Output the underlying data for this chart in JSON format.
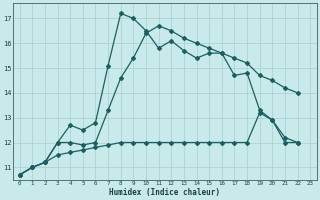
{
  "xlabel": "Humidex (Indice chaleur)",
  "bg_color": "#c8eaea",
  "grid_color": "#a8cece",
  "line_color": "#1a6060",
  "xlim": [
    -0.5,
    23.5
  ],
  "ylim": [
    10.5,
    17.6
  ],
  "yticks": [
    11,
    12,
    13,
    14,
    15,
    16,
    17
  ],
  "xticks": [
    0,
    1,
    2,
    3,
    4,
    5,
    6,
    7,
    8,
    9,
    10,
    11,
    12,
    13,
    14,
    15,
    16,
    17,
    18,
    19,
    20,
    21,
    22,
    23
  ],
  "series1_x": [
    0,
    1,
    2,
    3,
    4,
    5,
    6,
    7,
    8,
    9,
    10,
    11,
    12,
    13,
    14,
    15,
    16,
    17,
    18,
    19,
    20,
    21,
    22
  ],
  "series1_y": [
    10.7,
    11.0,
    11.2,
    12.0,
    12.7,
    12.5,
    12.8,
    15.1,
    17.2,
    17.0,
    16.5,
    15.8,
    16.1,
    15.7,
    15.4,
    15.6,
    15.6,
    14.7,
    14.8,
    13.3,
    12.9,
    12.0,
    12.0
  ],
  "series2_x": [
    0,
    1,
    2,
    3,
    4,
    5,
    6,
    7,
    8,
    9,
    10,
    11,
    12,
    13,
    14,
    15,
    16,
    17,
    18,
    19,
    20,
    21,
    22
  ],
  "series2_y": [
    10.7,
    11.0,
    11.2,
    12.0,
    12.0,
    11.9,
    12.0,
    13.3,
    14.6,
    15.4,
    16.4,
    16.7,
    16.5,
    16.2,
    16.0,
    15.8,
    15.6,
    15.4,
    15.2,
    14.7,
    14.5,
    14.2,
    14.0
  ],
  "series3_x": [
    0,
    1,
    2,
    3,
    4,
    5,
    6,
    7,
    8,
    9,
    10,
    11,
    12,
    13,
    14,
    15,
    16,
    17,
    18,
    19,
    20,
    21,
    22
  ],
  "series3_y": [
    10.7,
    11.0,
    11.2,
    11.5,
    11.6,
    11.7,
    11.8,
    11.9,
    12.0,
    12.0,
    12.0,
    12.0,
    12.0,
    12.0,
    12.0,
    12.0,
    12.0,
    12.0,
    12.0,
    13.2,
    12.9,
    12.2,
    12.0
  ]
}
